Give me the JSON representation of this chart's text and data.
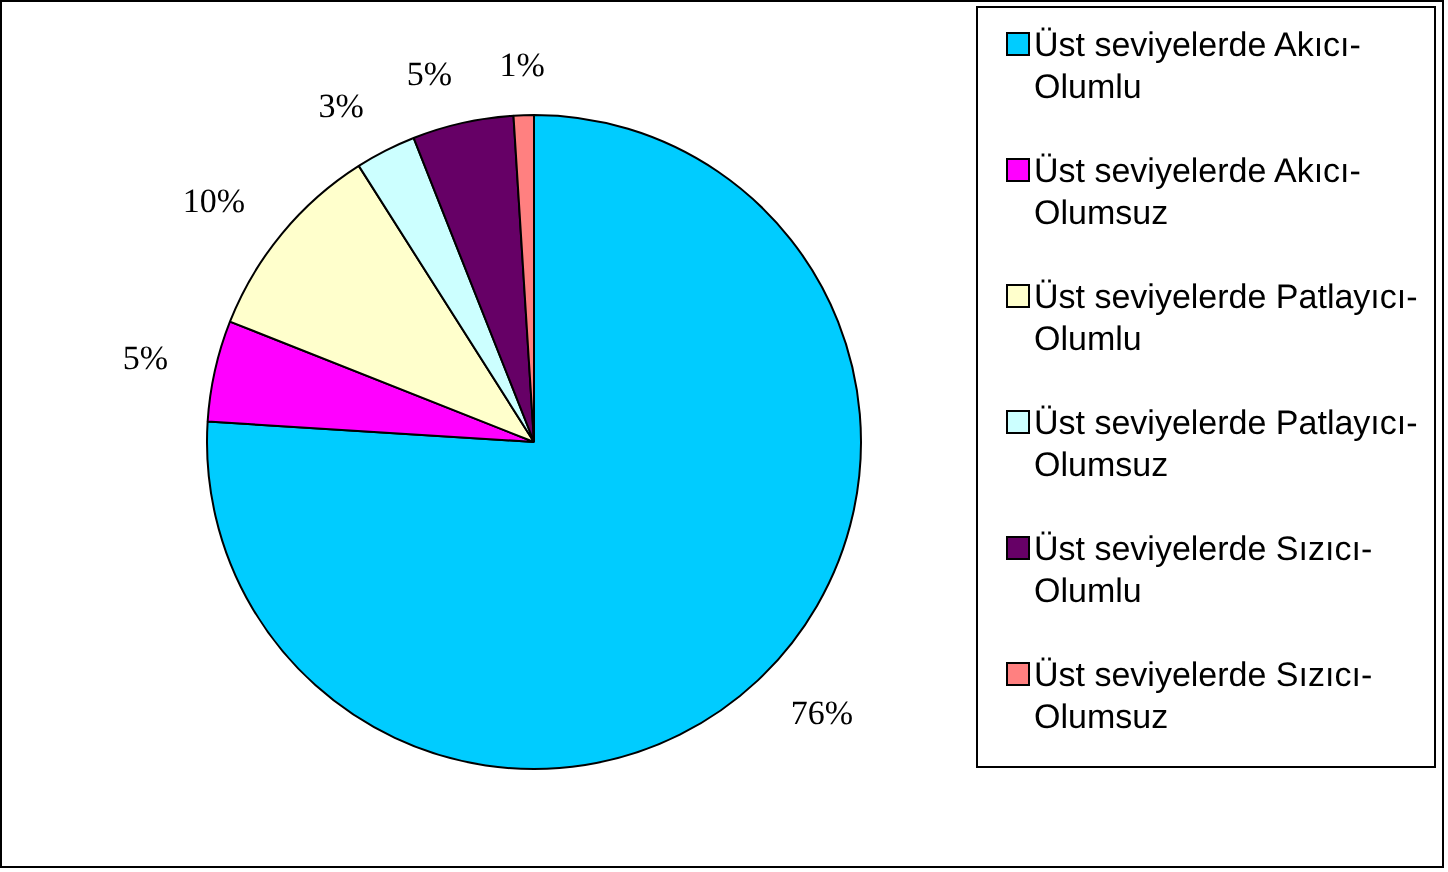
{
  "chart_data": {
    "type": "pie",
    "categories": [
      "Üst seviyelerde Akıcı-Olumlu",
      "Üst seviyelerde Akıcı-Olumsuz",
      "Üst seviyelerde Patlayıcı-Olumlu",
      "Üst seviyelerde Patlayıcı-Olumsuz",
      "Üst seviyelerde Sızıcı-Olumlu",
      "Üst seviyelerde Sızıcı-Olumsuz"
    ],
    "values": [
      76,
      5,
      10,
      3,
      5,
      1
    ],
    "colors": [
      "#00ccff",
      "#ff00ff",
      "#ffffcc",
      "#ccffff",
      "#660066",
      "#ff8080"
    ],
    "value_labels": [
      "76%",
      "5%",
      "10%",
      "3%",
      "5%",
      "1%"
    ],
    "legend": "right"
  }
}
